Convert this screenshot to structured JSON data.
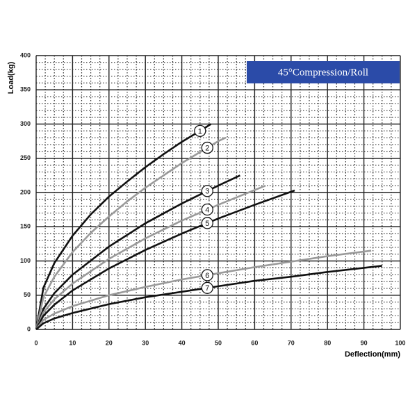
{
  "chart_data": {
    "type": "line",
    "title": "45°Compression/Roll",
    "xlabel": "Deflection(mm)",
    "ylabel": "Load(kg)",
    "xlim": [
      0,
      100
    ],
    "ylim": [
      0,
      400
    ],
    "xticks": [
      0,
      10,
      20,
      30,
      40,
      50,
      60,
      70,
      80,
      90,
      100
    ],
    "yticks": [
      0,
      50,
      100,
      150,
      200,
      250,
      300,
      350,
      400
    ],
    "grid": true,
    "series": [
      {
        "name": "1",
        "color": "#111111",
        "x": [
          0,
          2,
          5,
          10,
          15,
          20,
          25,
          30,
          35,
          40,
          45,
          48
        ],
        "values": [
          0,
          61,
          97,
          137,
          168,
          194,
          216,
          237,
          256,
          274,
          290,
          300
        ]
      },
      {
        "name": "2",
        "color": "#9a9a9a",
        "x": [
          0,
          2,
          5,
          10,
          15,
          20,
          25,
          30,
          35,
          40,
          45,
          50,
          52
        ],
        "values": [
          0,
          47,
          77,
          113,
          141,
          165,
          187,
          207,
          225,
          243,
          259,
          275,
          280
        ]
      },
      {
        "name": "3",
        "color": "#111111",
        "x": [
          0,
          2,
          5,
          10,
          20,
          30,
          40,
          50,
          56
        ],
        "values": [
          0,
          30,
          53,
          80,
          121,
          155,
          184,
          210,
          225
        ]
      },
      {
        "name": "4",
        "color": "#9a9a9a",
        "x": [
          0,
          2,
          5,
          10,
          20,
          30,
          40,
          50,
          63
        ],
        "values": [
          0,
          25,
          44,
          67,
          103,
          133,
          159,
          182,
          210
        ]
      },
      {
        "name": "5",
        "color": "#111111",
        "x": [
          0,
          2,
          5,
          10,
          20,
          30,
          40,
          50,
          60,
          71
        ],
        "values": [
          0,
          20,
          36,
          57,
          89,
          116,
          140,
          162,
          182,
          203
        ]
      },
      {
        "name": "6",
        "color": "#9a9a9a",
        "x": [
          0,
          2,
          5,
          10,
          20,
          30,
          40,
          50,
          60,
          70,
          80,
          92
        ],
        "values": [
          0,
          14,
          23,
          34,
          50,
          62,
          73,
          82,
          91,
          99,
          107,
          115
        ]
      },
      {
        "name": "7",
        "color": "#111111",
        "x": [
          0,
          2,
          5,
          10,
          20,
          30,
          40,
          50,
          60,
          70,
          80,
          95
        ],
        "values": [
          0,
          9,
          16,
          24,
          37,
          47,
          55,
          63,
          71,
          77,
          84,
          93
        ]
      }
    ]
  }
}
